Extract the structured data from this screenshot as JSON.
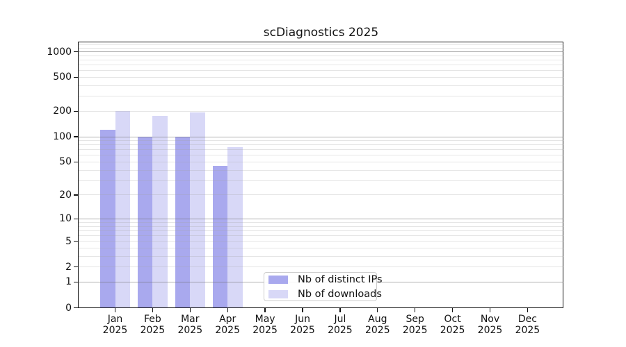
{
  "title": "scDiagnostics 2025",
  "chart_data": {
    "type": "bar",
    "title": "scDiagnostics 2025",
    "categories": [
      "Jan",
      "Feb",
      "Mar",
      "Apr",
      "May",
      "Jun",
      "Jul",
      "Aug",
      "Sep",
      "Oct",
      "Nov",
      "Dec"
    ],
    "year_label": "2025",
    "series": [
      {
        "name": "Nb of distinct IPs",
        "color": "#a9a9ee",
        "values": [
          120,
          100,
          100,
          45,
          0,
          0,
          0,
          0,
          0,
          0,
          0,
          0
        ]
      },
      {
        "name": "Nb of downloads",
        "color": "#d8d8f7",
        "values": [
          200,
          175,
          195,
          75,
          0,
          0,
          0,
          0,
          0,
          0,
          0,
          0
        ]
      }
    ],
    "yticks": [
      0,
      1,
      2,
      5,
      10,
      20,
      50,
      100,
      200,
      500,
      1000
    ],
    "major_grid_values": [
      1,
      10,
      100,
      1000
    ],
    "scale": "log10(value+1)",
    "ylim": [
      0,
      1300
    ],
    "xlabel": "",
    "ylabel": "",
    "grid": "both",
    "legend_position": "lower center"
  },
  "colors": {
    "bar_distinct_ips": "#a9a9ee",
    "bar_downloads": "#d8d8f7",
    "axis_spine": "#111111",
    "major_grid": "#9b9b9b",
    "minor_grid": "#e3e3e3",
    "legend_border": "#cccccc",
    "background": "#ffffff"
  }
}
